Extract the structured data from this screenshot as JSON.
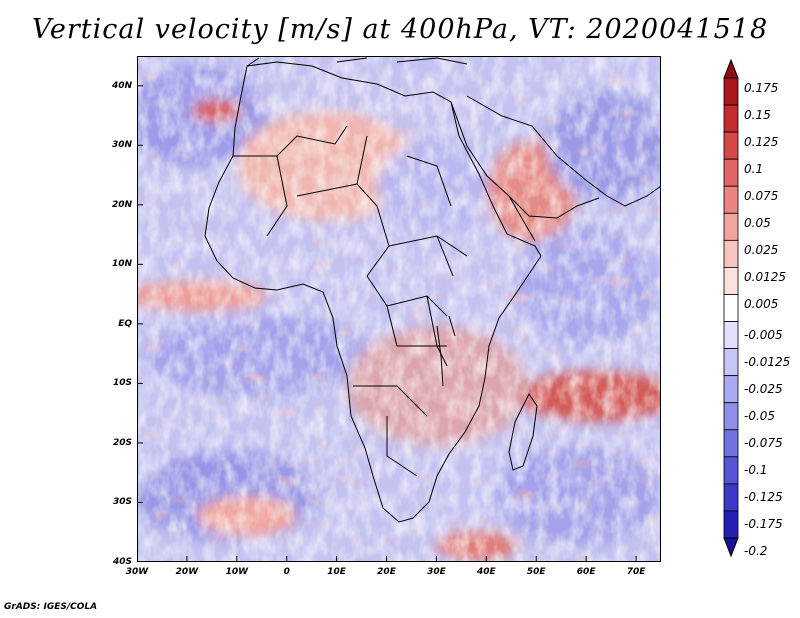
{
  "title": "Vertical velocity [m/s] at 400hPa, VT: 2020041518",
  "credit": "GrADS: IGES/COLA",
  "map": {
    "region": "Africa",
    "lat_labels": [
      "40N",
      "30N",
      "20N",
      "10N",
      "EQ",
      "10S",
      "20S",
      "30S",
      "40S"
    ],
    "lat_values": [
      40,
      30,
      20,
      10,
      0,
      -10,
      -20,
      -30,
      -40
    ],
    "lon_labels": [
      "30W",
      "20W",
      "10W",
      "0",
      "10E",
      "20E",
      "30E",
      "40E",
      "50E",
      "60E",
      "70E"
    ],
    "lon_values": [
      -30,
      -20,
      -10,
      0,
      10,
      20,
      30,
      40,
      50,
      60,
      70
    ],
    "lat_range": [
      -40,
      45
    ],
    "lon_range": [
      -30,
      75
    ]
  },
  "colorbar": {
    "labels": [
      "0.175",
      "0.15",
      "0.125",
      "0.1",
      "0.075",
      "0.05",
      "0.025",
      "0.0125",
      "0.005",
      "-0.005",
      "-0.0125",
      "-0.025",
      "-0.05",
      "-0.075",
      "-0.1",
      "-0.125",
      "-0.175",
      "-0.2"
    ],
    "colors": [
      "#a8171c",
      "#c42b2e",
      "#d4484a",
      "#e06665",
      "#ea8582",
      "#f2a5a0",
      "#f8c4bf",
      "#fbe0dd",
      "#ffffff",
      "#e2e0fb",
      "#c7c5f6",
      "#abaaf0",
      "#8f8ee8",
      "#7371df",
      "#5755d4",
      "#3c39c6",
      "#2620b2"
    ],
    "top_arrow_color": "#8e0d12",
    "bottom_arrow_color": "#1a0f9a"
  },
  "colors": {
    "background_field": "#c9c8f2",
    "positive": "#f0a29a",
    "negative": "#8a8ae6",
    "border": "#000000"
  }
}
